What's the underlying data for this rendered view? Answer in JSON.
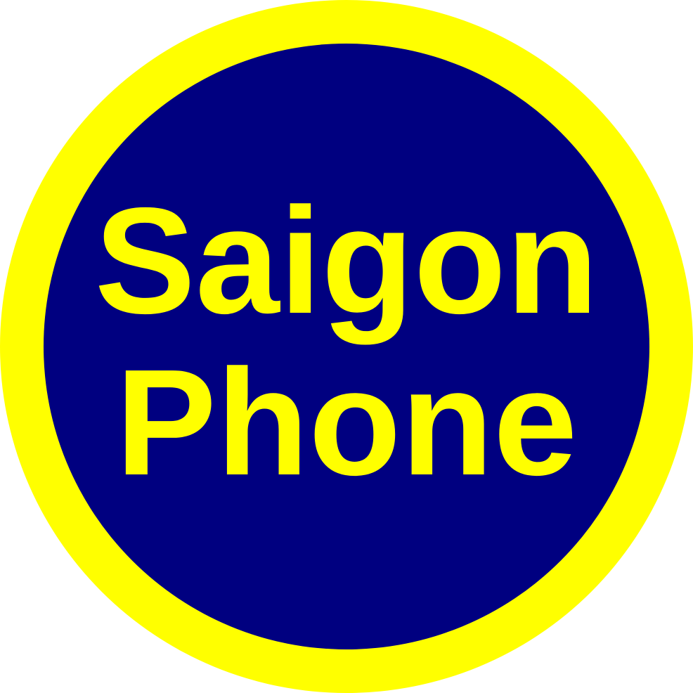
{
  "logo": {
    "line1": "Saigon",
    "line2": "Phone"
  },
  "colors": {
    "ring": "#ffff00",
    "disc": "#000080",
    "text": "#ffff00",
    "background": "#ffffff"
  }
}
